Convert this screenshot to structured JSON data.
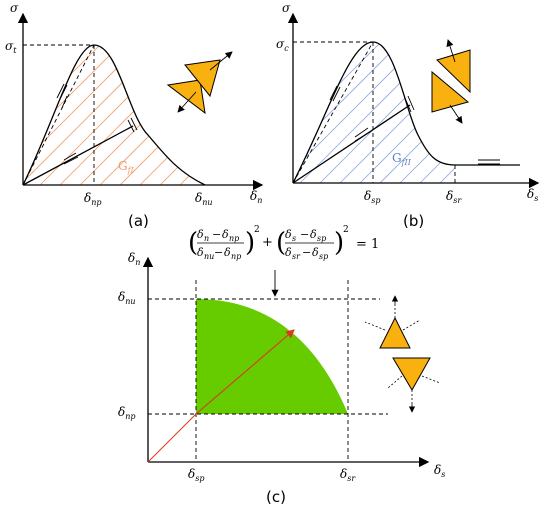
{
  "panel_a": {
    "y_axis_symbol": "σ",
    "peak_symbol": "σ",
    "peak_sub": "t",
    "energy_label": "G",
    "energy_sub": "fI",
    "x_axis_symbol": "δ",
    "x_axis_sub": "n",
    "tick1_symbol": "δ",
    "tick1_sub": "np",
    "tick2_symbol": "δ",
    "tick2_sub": "nu",
    "caption": "(a)"
  },
  "panel_b": {
    "y_axis_symbol": "σ",
    "peak_symbol": "σ",
    "peak_sub": "c",
    "energy_label": "G",
    "energy_sub": "fII",
    "x_axis_symbol": "δ",
    "x_axis_sub": "s",
    "tick1_symbol": "δ",
    "tick1_sub": "sp",
    "tick2_symbol": "δ",
    "tick2_sub": "sr",
    "caption": "(b)"
  },
  "panel_c": {
    "y_axis_symbol": "δ",
    "y_axis_sub": "n",
    "y_tick_top_symbol": "δ",
    "y_tick_top_sub": "nu",
    "y_tick_bottom_symbol": "δ",
    "y_tick_bottom_sub": "np",
    "x_axis_symbol": "δ",
    "x_axis_sub": "s",
    "x_tick_left_symbol": "δ",
    "x_tick_left_sub": "sp",
    "x_tick_right_symbol": "δ",
    "x_tick_right_sub": "sr",
    "equation_equals": "= 1",
    "equation_exponent": "2",
    "equation_plus": "+",
    "caption": "(c)"
  },
  "colors": {
    "triangle_fill": "#f9b10f",
    "mode1_hatch": "#f29a62",
    "mode2_hatch": "#8fa9dc",
    "mode2_label": "#5a7fc6",
    "mixed_region": "#66cc00",
    "path_arrow": "#d9391d"
  }
}
